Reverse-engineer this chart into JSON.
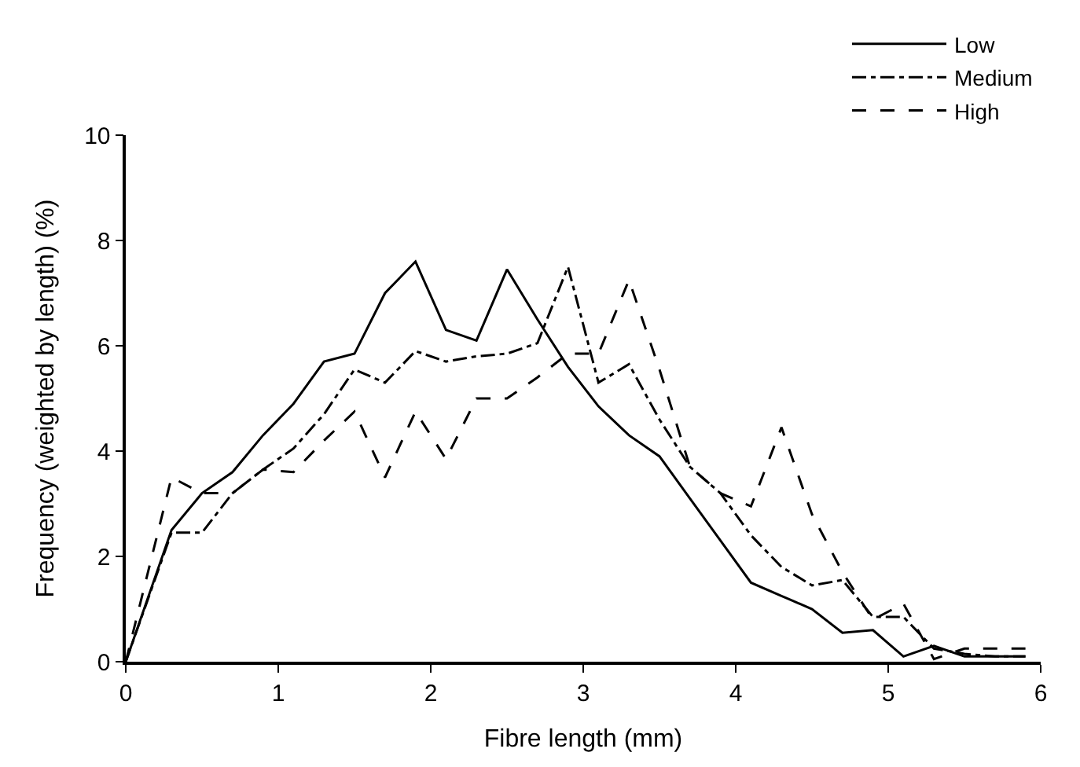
{
  "chart_data": {
    "type": "line",
    "xlabel": "Fibre length (mm)",
    "ylabel": "Frequency (weighted by length) (%)",
    "x": [
      0,
      0.3,
      0.5,
      0.7,
      0.9,
      1.1,
      1.3,
      1.5,
      1.7,
      1.9,
      2.1,
      2.3,
      2.5,
      2.7,
      2.9,
      3.1,
      3.3,
      3.5,
      3.7,
      3.9,
      4.1,
      4.3,
      4.5,
      4.7,
      4.9,
      5.1,
      5.3,
      5.5,
      5.7,
      5.9
    ],
    "series": [
      {
        "name": "Low",
        "color": "#000000",
        "line_style": "solid",
        "values": [
          0,
          2.5,
          3.2,
          3.6,
          4.3,
          4.9,
          5.7,
          5.85,
          7.0,
          7.6,
          6.3,
          6.1,
          7.45,
          6.5,
          5.6,
          4.85,
          4.3,
          3.9,
          3.1,
          2.3,
          1.5,
          1.25,
          1.0,
          0.55,
          0.6,
          0.1,
          0.3,
          0.1,
          0.1,
          0.1
        ]
      },
      {
        "name": "Medium",
        "color": "#000000",
        "line_style": "dashdot",
        "values": [
          0,
          2.45,
          2.45,
          3.2,
          3.65,
          4.05,
          4.7,
          5.55,
          5.3,
          5.9,
          5.7,
          5.8,
          5.85,
          6.05,
          7.5,
          5.3,
          5.65,
          4.6,
          3.7,
          3.2,
          2.4,
          1.8,
          1.45,
          1.55,
          0.85,
          0.85,
          0.25,
          0.15,
          0.1,
          0.1
        ]
      },
      {
        "name": "High",
        "color": "#000000",
        "line_style": "dashed",
        "values": [
          0,
          3.5,
          3.2,
          3.2,
          3.65,
          3.6,
          4.2,
          4.75,
          3.5,
          4.75,
          3.85,
          5.0,
          5.0,
          5.4,
          5.85,
          5.85,
          7.25,
          5.55,
          3.7,
          3.2,
          2.95,
          4.45,
          2.8,
          1.7,
          0.8,
          1.1,
          0.05,
          0.25,
          0.25,
          0.25
        ]
      }
    ],
    "xlim": [
      0,
      6
    ],
    "xticks": [
      0,
      1,
      2,
      3,
      4,
      5,
      6
    ],
    "ylim": [
      0,
      10
    ],
    "yticks": [
      0,
      2,
      4,
      6,
      8,
      10
    ],
    "legend": "top right",
    "marker": "none"
  }
}
